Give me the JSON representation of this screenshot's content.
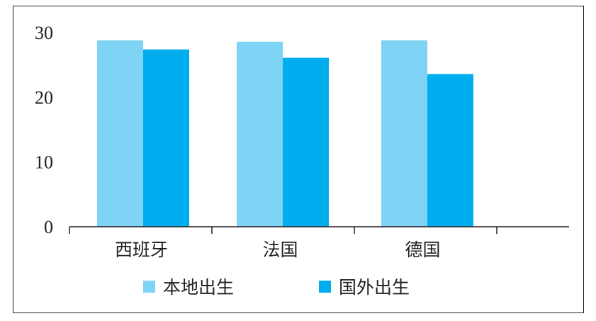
{
  "chart_data": {
    "type": "bar",
    "title": "",
    "xlabel": "",
    "ylabel": "",
    "categories": [
      "西班牙",
      "法国",
      "德国"
    ],
    "series": [
      {
        "name": "本地出生",
        "values": [
          28.8,
          28.6,
          28.8
        ],
        "color": "#7fd3f5"
      },
      {
        "name": "国外出生",
        "values": [
          27.4,
          26.1,
          23.6
        ],
        "color": "#00aeef"
      }
    ],
    "ylim": [
      0,
      30
    ],
    "yticks": [
      0,
      10,
      20,
      30
    ],
    "grid": false,
    "legend_position": "bottom",
    "axis_color": "#231f20"
  }
}
